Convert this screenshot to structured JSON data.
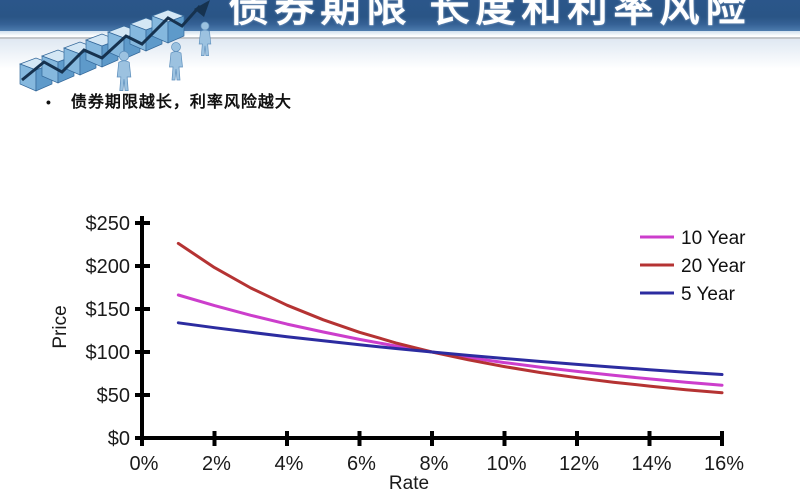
{
  "header": {
    "title": "债券期限 长度和利率风险"
  },
  "bullet": {
    "marker": "•",
    "text": "债券期限越长，利率风险越大"
  },
  "colors": {
    "header_blue_top": "#2b568a",
    "header_blue_bottom": "#4d7cae",
    "divider_gray": "#c2c6ca",
    "axis_black": "#000000"
  },
  "chart_data": {
    "type": "line",
    "title": "",
    "xlabel": "Rate",
    "ylabel": "Price",
    "xlim": [
      0,
      16
    ],
    "ylim": [
      0,
      250
    ],
    "grid": false,
    "legend_position": "upper right",
    "x": [
      1,
      2,
      3,
      4,
      5,
      6,
      7,
      8,
      9,
      10,
      11,
      12,
      13,
      14,
      15,
      16
    ],
    "x_unit": "percent",
    "series": [
      {
        "name": "10 Year",
        "color": "#cc3ecc",
        "values": [
          166.3,
          153.9,
          142.7,
          132.4,
          123.2,
          114.7,
          107.0,
          100.0,
          93.6,
          87.7,
          82.3,
          77.4,
          72.9,
          68.7,
          64.9,
          61.3
        ]
      },
      {
        "name": "20 Year",
        "color": "#b53333",
        "values": [
          226.3,
          198.1,
          174.4,
          154.4,
          137.4,
          122.9,
          110.6,
          100.0,
          90.9,
          83.0,
          76.1,
          70.1,
          64.9,
          60.3,
          56.2,
          52.6
        ]
      },
      {
        "name": "5 Year",
        "color": "#2c2ca0",
        "values": [
          134.0,
          128.3,
          122.9,
          117.8,
          113.0,
          108.4,
          104.1,
          100.0,
          96.1,
          92.4,
          88.9,
          85.6,
          82.4,
          79.4,
          76.5,
          73.8
        ]
      }
    ],
    "x_ticks": {
      "values": [
        0,
        2,
        4,
        6,
        8,
        10,
        12,
        14,
        16
      ],
      "labels": [
        "0%",
        "2%",
        "4%",
        "6%",
        "8%",
        "10%",
        "12%",
        "14%",
        "16%"
      ]
    },
    "y_ticks": {
      "values": [
        0,
        50,
        100,
        150,
        200,
        250
      ],
      "labels": [
        "$0",
        "$50",
        "$100",
        "$150",
        "$200",
        "$250"
      ]
    }
  }
}
